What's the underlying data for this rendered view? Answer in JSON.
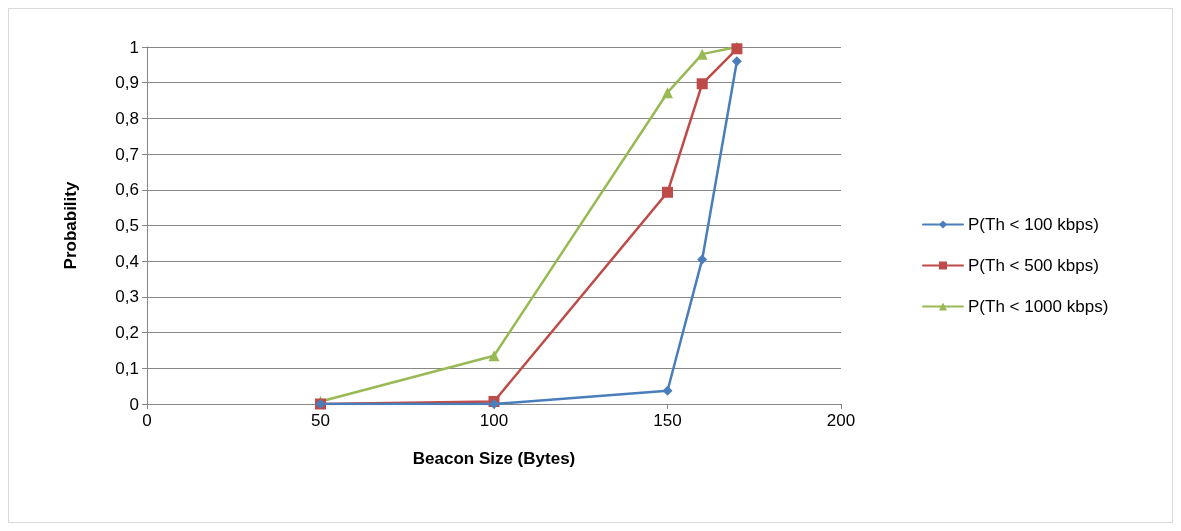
{
  "chart_data": {
    "type": "line",
    "xlabel": "Beacon Size (Bytes)",
    "ylabel": "Probability",
    "x": [
      50,
      100,
      150,
      160,
      170
    ],
    "xlim": [
      0,
      200
    ],
    "xticks": [
      0,
      50,
      100,
      150,
      200
    ],
    "ylim": [
      0,
      1
    ],
    "yticks": [
      {
        "value": 0,
        "label": "0"
      },
      {
        "value": 0.1,
        "label": "0,1"
      },
      {
        "value": 0.2,
        "label": "0,2"
      },
      {
        "value": 0.3,
        "label": "0,3"
      },
      {
        "value": 0.4,
        "label": "0,4"
      },
      {
        "value": 0.5,
        "label": "0,5"
      },
      {
        "value": 0.6,
        "label": "0,6"
      },
      {
        "value": 0.7,
        "label": "0,7"
      },
      {
        "value": 0.8,
        "label": "0,8"
      },
      {
        "value": 0.9,
        "label": "0,9"
      },
      {
        "value": 1,
        "label": "1"
      }
    ],
    "grid": "y",
    "legend": "right",
    "line_style": "solid",
    "series": [
      {
        "name": "P(Th < 100 kbps)",
        "color": "#4a7ebb",
        "marker": "diamond",
        "values": [
          0,
          0,
          0.037,
          0.405,
          0.96
        ]
      },
      {
        "name": "P(Th < 500 kbps)",
        "color": "#be4b48",
        "marker": "square",
        "values": [
          0,
          0.007,
          0.593,
          0.897,
          0.995
        ]
      },
      {
        "name": "P(Th < 1000 kbps)",
        "color": "#98b954",
        "marker": "triangle",
        "values": [
          0.007,
          0.135,
          0.872,
          0.98,
          1
        ]
      }
    ]
  }
}
